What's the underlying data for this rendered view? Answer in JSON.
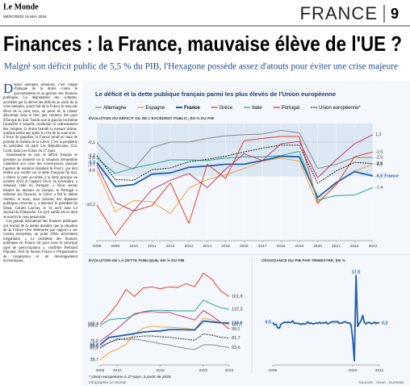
{
  "header": {
    "logo": "Le Monde",
    "date": "MERCREDI 15 MAI 2024",
    "section": "FRANCE",
    "page": "9"
  },
  "headline": "Finances : la France, mauvaise élève de l'UE ?",
  "subtitle": "Malgré son déficit public de 5,5 % du PIB, l'Hexagone possède assez d'atouts pour éviter une crise majeure",
  "article": [
    "Depuis quelques semaines, c'est l'angle d'attaque de la droite contre le gouvernement et sa gestion des finances publiques. La dégradation des comptes, accélérée par la dérive des déficits au sortir de la crise sanitaire, aurait fait de la France le mauvais élève de la zone euro, au point de la classer désormais dans le bloc peu vertueux des pays d'Europe du Sud. Tandis que la gauche incrimine l'austérité à laquelle conduirait le redressement des comptes, la droite brandit la menace ultime, quelque trente ans après la crise de la zone euro : à force de gaspiller, la France serait en train de prendre le chemin de la Grèce. C'est la prophétie du président du parti Les Républicains, Eric Ciotti, dans Les Echos du 27 mars.",
    "Insoutenable ou non, le déficit français se présente au moment où la situation d'ensemble s'améliore aux yeux des investisseurs, puisque l'agence de notation Standard & Poor's, qui doit rendre son verdict sur la dette française fin mai, a relevé la note accordée à la dette grecque en octobre 2023 et l'agence Fitch, en novembre, a rehaussé celle du Portugal. « Nous serons bientôt les derniers en Europe, le Portugal a redressé ses finances, la Grèce a fait le même chemin, et nous, nous laissons nos dépenses publiques s'envoler », a dénoncé le président du Sénat, Gérard Larcher, le 14 avril dans Le Journal du Dimanche. Ce qu'il oublie est ce dont se nourrit le vote pessimiste.",
    "Les grands indicateurs des finances publiques ont évolué de la même manière que la situation de la France s'est détériorée par rapport à ses voisins européens, au point d'être strictement inégalitaire. « Le problème des finances publiques en France est pour nous le principal sujet de préoccupation », confirme Bertrand Piquand, chef du bureau France à l'Organisation de coopération et de développement économiques."
  ],
  "panel_title": "Le déficit et la dette publique français parmi les plus élevés de l'Union européenne",
  "footer": {
    "note": "* Union européenne à 27 pays, à partir de 2020",
    "credit": "Infographie Le Monde",
    "sources": "Sources : Insee ; Eurostat"
  },
  "chart_data": [
    {
      "type": "line",
      "title": "ÉVOLUTION DU DÉFICIT OU DE L'EXCÉDENT PUBLIC, EN % DU PIB",
      "x": [
        2008,
        2009,
        2010,
        2011,
        2012,
        2013,
        2014,
        2015,
        2016,
        2017,
        2018,
        2019,
        2020,
        2021,
        2022,
        2023
      ],
      "xlim": [
        2008,
        2023
      ],
      "xticks": [
        2008,
        2009,
        2010,
        2011,
        2012,
        2013,
        2014,
        2015,
        2016,
        2017,
        2018,
        2019,
        2020,
        2021,
        2022,
        2023
      ],
      "ylim": [
        -16,
        3
      ],
      "series": [
        {
          "name": "Allemagne",
          "color": "#8a8a8a",
          "values": [
            -0.1,
            -3.2,
            -4.4,
            -0.9,
            0.0,
            0.0,
            0.6,
            1.0,
            1.2,
            1.3,
            1.9,
            1.5,
            -4.3,
            -3.6,
            -2.5,
            -2.5
          ],
          "value_labels": [
            "-0,1",
            null,
            null,
            null,
            null,
            null,
            null,
            null,
            null,
            null,
            null,
            null,
            null,
            null,
            null,
            "-2,5"
          ]
        },
        {
          "name": "Espagne",
          "color": "#f0a23b",
          "values": [
            -4.6,
            -11.3,
            -9.5,
            -9.7,
            -11.6,
            -7.5,
            -6.1,
            -5.3,
            -4.3,
            -3.1,
            -2.6,
            -3.1,
            -10.1,
            -6.7,
            -4.7,
            -3.6
          ],
          "value_labels": [
            "-4,6",
            null,
            null,
            null,
            null,
            null,
            null,
            null,
            null,
            null,
            null,
            null,
            null,
            null,
            null,
            "-3,6"
          ]
        },
        {
          "name": "France",
          "color": "#1f5fb0",
          "bold": true,
          "values": [
            -3.3,
            -7.2,
            -6.9,
            -5.2,
            -5.0,
            -4.1,
            -3.9,
            -3.6,
            -3.6,
            -3.0,
            -2.3,
            -2.4,
            -9.0,
            -6.6,
            -4.8,
            -5.5
          ],
          "value_labels": [
            "-3,3",
            null,
            null,
            null,
            null,
            null,
            null,
            null,
            null,
            null,
            null,
            null,
            null,
            null,
            null,
            "-5,5"
          ]
        },
        {
          "name": "Grèce",
          "color": "#e0422e",
          "values": [
            -10.2,
            -15.1,
            -11.2,
            -10.3,
            -6.6,
            -13.2,
            -3.6,
            -5.9,
            0.2,
            0.6,
            0.9,
            0.9,
            -9.8,
            -7.0,
            -2.4,
            -1.6
          ],
          "value_labels": [
            "-10,2",
            null,
            null,
            null,
            null,
            null,
            null,
            null,
            null,
            null,
            null,
            null,
            null,
            null,
            null,
            "-1,6"
          ]
        },
        {
          "name": "Italie",
          "color": "#2aa39a",
          "values": [
            -2.6,
            -5.1,
            -4.2,
            -3.6,
            -2.9,
            -2.9,
            -3.0,
            -2.6,
            -2.4,
            -2.4,
            -2.2,
            -1.5,
            -9.4,
            -8.7,
            -8.6,
            -7.4
          ],
          "value_labels": [
            "-2,6",
            null,
            null,
            null,
            null,
            null,
            null,
            null,
            null,
            null,
            null,
            null,
            null,
            null,
            null,
            "-7,4"
          ]
        },
        {
          "name": "Portugal",
          "color": "#c23a6b",
          "values": [
            -3.7,
            -9.8,
            -11.2,
            -7.7,
            -6.2,
            -5.1,
            -7.4,
            -4.4,
            -1.9,
            -3.0,
            -0.3,
            0.1,
            -5.8,
            -2.9,
            -0.3,
            1.2
          ],
          "value_labels": [
            "-3,7",
            null,
            null,
            null,
            null,
            null,
            null,
            null,
            null,
            null,
            null,
            null,
            null,
            null,
            null,
            "1,2"
          ]
        },
        {
          "name": "Union européenne*",
          "color": "#222222",
          "dashed": true,
          "values": [
            -2.2,
            -6.1,
            -6.2,
            -4.5,
            -4.2,
            -3.2,
            -2.8,
            -2.3,
            -1.6,
            -1.0,
            -0.5,
            -0.5,
            -6.7,
            -4.7,
            -3.3,
            -3.5
          ],
          "value_labels": [
            "-2,2",
            null,
            null,
            null,
            null,
            null,
            null,
            null,
            null,
            null,
            null,
            null,
            null,
            null,
            null,
            "-3,5"
          ]
        }
      ]
    },
    {
      "type": "line",
      "title": "ÉVOLUTION DE LA DETTE PUBLIQUE, EN % DU PIB",
      "x": [
        2008,
        2009,
        2010,
        2011,
        2012,
        2013,
        2014,
        2015,
        2016,
        2017,
        2018,
        2019,
        2020,
        2021,
        2022,
        2023
      ],
      "xlim": [
        2008,
        2023
      ],
      "xticks": [
        2008,
        2010,
        2015,
        2020,
        2023
      ],
      "ylim": [
        30,
        215
      ],
      "series": [
        {
          "name": "Allemagne",
          "color": "#8a8a8a",
          "values": [
            65.5,
            72.4,
            81.0,
            78.5,
            79.8,
            77.4,
            74.5,
            71.0,
            68.7,
            64.9,
            61.8,
            59.6,
            68.8,
            69.0,
            66.1,
            63.6
          ],
          "value_labels": [
            "65,5",
            null,
            null,
            null,
            null,
            null,
            null,
            null,
            null,
            null,
            null,
            null,
            null,
            null,
            null,
            "63,6"
          ]
        },
        {
          "name": "Espagne",
          "color": "#f0a23b",
          "values": [
            39.7,
            53.3,
            60.5,
            69.9,
            90.0,
            100.5,
            105.1,
            103.3,
            102.8,
            101.9,
            100.5,
            98.2,
            120.3,
            116.8,
            111.6,
            107.7
          ],
          "value_labels": [
            "39,7",
            null,
            null,
            null,
            null,
            null,
            null,
            null,
            null,
            null,
            null,
            null,
            null,
            null,
            null,
            "107,7"
          ]
        },
        {
          "name": "France",
          "color": "#1f5fb0",
          "bold": true,
          "values": [
            68.8,
            83.0,
            85.3,
            87.8,
            90.6,
            93.4,
            94.9,
            95.6,
            98.0,
            98.1,
            97.8,
            97.4,
            114.7,
            112.9,
            111.2,
            110.6
          ],
          "value_labels": [
            "68,8",
            null,
            null,
            null,
            null,
            null,
            null,
            null,
            null,
            null,
            null,
            null,
            null,
            null,
            null,
            "110,6"
          ]
        },
        {
          "name": "Grèce",
          "color": "#e0422e",
          "values": [
            109.4,
            126.7,
            147.5,
            175.2,
            162.0,
            178.2,
            180.3,
            176.7,
            180.5,
            179.5,
            186.4,
            180.7,
            207.0,
            195.0,
            172.7,
            161.9
          ],
          "value_labels": [
            "109,4",
            null,
            null,
            null,
            null,
            null,
            null,
            null,
            null,
            null,
            null,
            null,
            null,
            null,
            null,
            "161,9"
          ]
        },
        {
          "name": "Italie",
          "color": "#2aa39a",
          "values": [
            106.2,
            116.6,
            119.2,
            119.7,
            126.5,
            132.5,
            135.4,
            135.3,
            134.8,
            134.2,
            134.4,
            134.1,
            154.9,
            147.1,
            140.5,
            137.3
          ],
          "value_labels": [
            "106,2",
            null,
            null,
            null,
            null,
            null,
            null,
            null,
            null,
            null,
            null,
            null,
            null,
            null,
            null,
            "137,3"
          ]
        },
        {
          "name": "Portugal",
          "color": "#c23a6b",
          "values": [
            75.6,
            87.8,
            100.2,
            114.4,
            129.0,
            131.4,
            132.9,
            131.2,
            131.5,
            126.1,
            121.5,
            116.6,
            134.9,
            124.5,
            112.4,
            99.1
          ],
          "value_labels": [
            "75,6",
            null,
            null,
            null,
            null,
            null,
            null,
            null,
            null,
            null,
            null,
            null,
            null,
            null,
            null,
            "99,1"
          ]
        },
        {
          "name": "Union européenne*",
          "color": "#222222",
          "dashed": true,
          "values": [
            62.3,
            73.2,
            78.5,
            81.1,
            83.9,
            85.7,
            86.0,
            84.3,
            83.6,
            81.3,
            79.6,
            77.7,
            90.0,
            87.4,
            83.4,
            81.7
          ],
          "value_labels": [
            "62,3",
            null,
            null,
            null,
            null,
            null,
            null,
            null,
            null,
            null,
            null,
            null,
            null,
            null,
            null,
            "81,7"
          ]
        }
      ]
    },
    {
      "type": "line",
      "title": "CROISSANCE DU PIB PAR TRIMESTRE, EN %",
      "x": [
        2008,
        2008.25,
        2008.5,
        2008.75,
        2009,
        2009.25,
        2009.5,
        2009.75,
        2010,
        2010.25,
        2010.5,
        2010.75,
        2011,
        2011.25,
        2011.5,
        2011.75,
        2012,
        2012.25,
        2012.5,
        2012.75,
        2013,
        2013.25,
        2013.5,
        2013.75,
        2014,
        2014.25,
        2014.5,
        2014.75,
        2015,
        2015.25,
        2015.5,
        2015.75,
        2016,
        2016.25,
        2016.5,
        2016.75,
        2017,
        2017.25,
        2017.5,
        2017.75,
        2018,
        2018.25,
        2018.5,
        2018.75,
        2019,
        2019.25,
        2019.5,
        2019.75,
        2020,
        2020.25,
        2020.5,
        2020.75,
        2021,
        2021.25,
        2021.5,
        2021.75,
        2022,
        2022.25,
        2022.5,
        2022.75,
        2023,
        2023.25,
        2023.5,
        2023.75,
        2024
      ],
      "xlim": [
        2008,
        2024
      ],
      "xticks": [
        2008,
        2020,
        2024
      ],
      "ylim": [
        -15,
        19
      ],
      "series": [
        {
          "name": "France",
          "color": "#1f5fb0",
          "bold": true,
          "values": [
            0.5,
            -0.4,
            -0.3,
            -1.6,
            -1.5,
            -0.2,
            0.2,
            0.6,
            0.4,
            0.6,
            0.5,
            0.5,
            1.0,
            0.1,
            0.2,
            0.1,
            0.0,
            -0.3,
            0.1,
            -0.2,
            0.0,
            0.7,
            0.0,
            0.3,
            -0.1,
            0.0,
            0.3,
            0.1,
            0.5,
            0.1,
            0.3,
            0.3,
            0.6,
            -0.1,
            0.2,
            0.6,
            0.7,
            0.7,
            0.6,
            0.8,
            0.1,
            0.2,
            0.4,
            0.7,
            0.6,
            0.3,
            0.3,
            -0.4,
            -5.4,
            -13.5,
            17.5,
            -1.0,
            0.2,
            1.0,
            3.0,
            0.5,
            -0.1,
            0.4,
            0.5,
            0.0,
            0.1,
            0.6,
            0.0,
            0.4,
            0.2
          ],
          "value_labels": [
            "0,5",
            null,
            null,
            null,
            null,
            null,
            null,
            null,
            null,
            null,
            null,
            null,
            null,
            null,
            null,
            null,
            null,
            null,
            null,
            null,
            null,
            null,
            null,
            null,
            null,
            null,
            null,
            null,
            null,
            null,
            null,
            null,
            null,
            null,
            null,
            null,
            null,
            null,
            null,
            null,
            null,
            null,
            null,
            null,
            null,
            null,
            null,
            null,
            null,
            null,
            "17,5",
            null,
            null,
            null,
            null,
            null,
            null,
            null,
            null,
            null,
            null,
            null,
            null,
            null,
            "0,2"
          ]
        }
      ]
    }
  ]
}
